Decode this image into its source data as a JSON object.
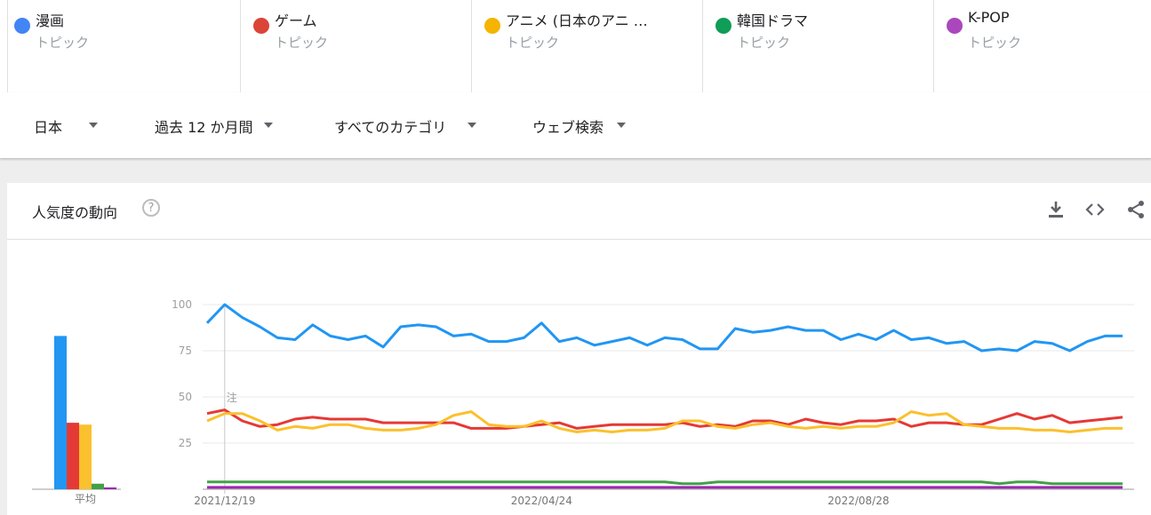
{
  "terms": [
    {
      "name": "漫画",
      "kind": "トピック",
      "color": "#4285f4"
    },
    {
      "name": "ゲーム",
      "kind": "トピック",
      "color": "#db4437"
    },
    {
      "name": "アニメ (日本のアニ …",
      "kind": "トピック",
      "color": "#f4b400"
    },
    {
      "name": "韓国ドラマ",
      "kind": "トピック",
      "color": "#0f9d58"
    },
    {
      "name": "K-POP",
      "kind": "トピック",
      "color": "#ab47bc"
    }
  ],
  "filters": {
    "region": "日本",
    "period": "過去 12 か月間",
    "category": "すべてのカテゴリ",
    "search_type": "ウェブ検索"
  },
  "card": {
    "title": "人気度の動向",
    "help_glyph": "?",
    "icons": [
      "download-icon",
      "embed-icon",
      "share-icon"
    ]
  },
  "chart_data": {
    "type": "line",
    "title": "人気度の動向",
    "avg_label": "平均",
    "note_marker": "注",
    "ylim": [
      0,
      100
    ],
    "yticks": [
      25,
      50,
      75,
      100
    ],
    "xtick_labels": [
      {
        "label": "2021/12/19",
        "index": 1
      },
      {
        "label": "2022/04/24",
        "index": 19
      },
      {
        "label": "2022/08/28",
        "index": 37
      }
    ],
    "n_weeks": 53,
    "grid": true,
    "series": [
      {
        "name": "漫画",
        "color": "#2196f3",
        "average": 83,
        "values": [
          90,
          100,
          93,
          88,
          82,
          81,
          89,
          83,
          81,
          83,
          77,
          88,
          89,
          88,
          83,
          84,
          80,
          80,
          82,
          90,
          80,
          82,
          78,
          80,
          82,
          78,
          82,
          81,
          76,
          76,
          87,
          85,
          86,
          88,
          86,
          86,
          81,
          84,
          81,
          86,
          81,
          82,
          79,
          80,
          75,
          76,
          75,
          80,
          79,
          75,
          80,
          83,
          83
        ]
      },
      {
        "name": "ゲーム",
        "color": "#e53935",
        "average": 36,
        "values": [
          41,
          43,
          37,
          34,
          35,
          38,
          39,
          38,
          38,
          38,
          36,
          36,
          36,
          36,
          36,
          33,
          33,
          33,
          34,
          35,
          36,
          33,
          34,
          35,
          35,
          35,
          35,
          36,
          34,
          35,
          34,
          37,
          37,
          35,
          38,
          36,
          35,
          37,
          37,
          38,
          34,
          36,
          36,
          35,
          35,
          38,
          41,
          38,
          40,
          36,
          37,
          38,
          39
        ]
      },
      {
        "name": "アニメ (日本のアニ …",
        "color": "#fbc02d",
        "average": 35,
        "values": [
          37,
          41,
          41,
          37,
          32,
          34,
          33,
          35,
          35,
          33,
          32,
          32,
          33,
          35,
          40,
          42,
          35,
          34,
          34,
          37,
          33,
          31,
          32,
          31,
          32,
          32,
          33,
          37,
          37,
          34,
          33,
          35,
          36,
          34,
          33,
          34,
          33,
          34,
          34,
          36,
          42,
          40,
          41,
          35,
          34,
          33,
          33,
          32,
          32,
          31,
          32,
          33,
          33
        ]
      },
      {
        "name": "韓国ドラマ",
        "color": "#43a047",
        "average": 3,
        "values": [
          4,
          4,
          4,
          4,
          4,
          4,
          4,
          4,
          4,
          4,
          4,
          4,
          4,
          4,
          4,
          4,
          4,
          4,
          4,
          4,
          4,
          4,
          4,
          4,
          4,
          4,
          4,
          3,
          3,
          4,
          4,
          4,
          4,
          4,
          4,
          4,
          4,
          4,
          4,
          4,
          4,
          4,
          4,
          4,
          4,
          3,
          4,
          4,
          3,
          3,
          3,
          3,
          3
        ]
      },
      {
        "name": "K-POP",
        "color": "#9c27b0",
        "average": 1,
        "values": [
          1,
          1,
          1,
          1,
          1,
          1,
          1,
          1,
          1,
          1,
          1,
          1,
          1,
          1,
          1,
          1,
          1,
          1,
          1,
          1,
          1,
          1,
          1,
          1,
          1,
          1,
          1,
          1,
          1,
          1,
          1,
          1,
          1,
          1,
          1,
          1,
          1,
          1,
          1,
          1,
          1,
          1,
          1,
          1,
          1,
          1,
          1,
          1,
          1,
          1,
          1,
          1,
          1
        ]
      }
    ]
  }
}
